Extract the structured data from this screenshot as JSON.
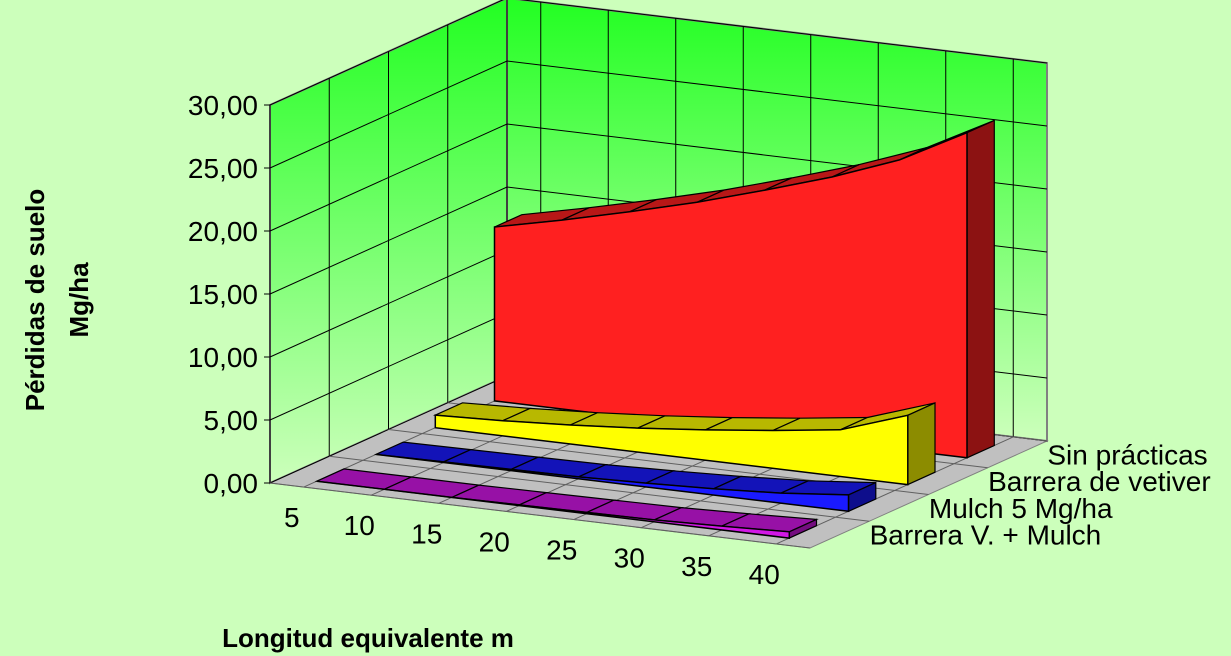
{
  "chart_data": {
    "type": "area",
    "title": "",
    "xlabel": "Longitud equivalente m",
    "ylabel_line1": "Pérdidas de suelo",
    "ylabel_line2": "Mg/ha",
    "x": [
      5,
      10,
      15,
      20,
      25,
      30,
      35,
      40
    ],
    "x_tick_labels": [
      "5",
      "10",
      "15",
      "20",
      "25",
      "30",
      "35",
      "40"
    ],
    "ylim": [
      0,
      30
    ],
    "y_tick_labels": [
      "0,00",
      "5,00",
      "10,00",
      "15,00",
      "20,00",
      "25,00",
      "30,00"
    ],
    "grid": true,
    "series": [
      {
        "name": "Sin prácticas",
        "values": [
          13.8,
          15.0,
          16.3,
          17.7,
          19.3,
          21.0,
          23.0,
          25.8
        ],
        "color": "#ff2020"
      },
      {
        "name": "Barrera de vetiver",
        "values": [
          1.0,
          1.2,
          1.5,
          1.9,
          2.4,
          3.0,
          3.7,
          5.5
        ],
        "color": "#ffff00"
      },
      {
        "name": "Mulch 5 Mg/ha",
        "values": [
          0.0,
          0.05,
          0.1,
          0.15,
          0.3,
          0.5,
          0.8,
          1.3
        ],
        "color": "#1a1aff"
      },
      {
        "name": "Barrera V. + Mulch",
        "values": [
          0.0,
          0.0,
          0.0,
          0.05,
          0.1,
          0.15,
          0.3,
          0.5
        ],
        "color": "#d218e6"
      }
    ],
    "colors": {
      "background": "#ccffbb",
      "back_wall_top": "#22ff22",
      "back_wall_bottom": "#ccffbb",
      "floor": "#c0c0c0",
      "grid": "#7f7f7f"
    }
  }
}
